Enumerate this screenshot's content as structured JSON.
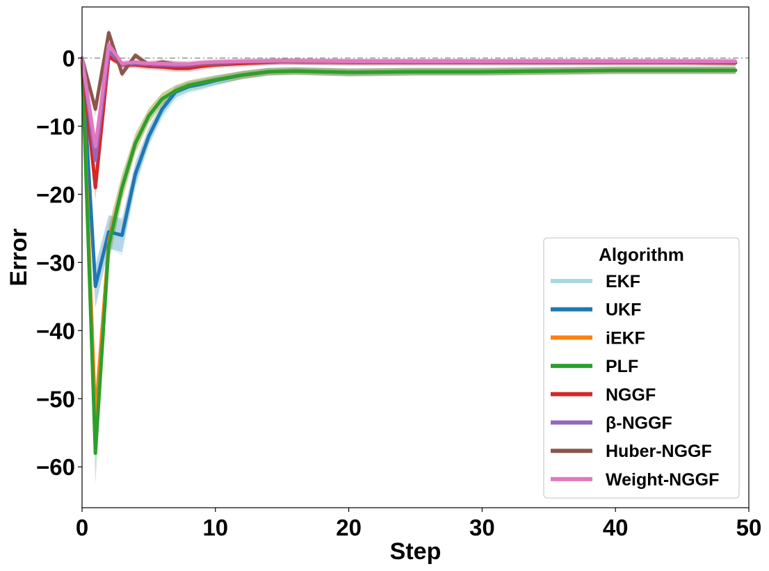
{
  "chart_data": {
    "type": "line",
    "title": "",
    "xlabel": "Step",
    "ylabel": "Error",
    "xlim": [
      0,
      50
    ],
    "ylim": [
      -66,
      7.5
    ],
    "xticks": [
      "0",
      "10",
      "20",
      "30",
      "40",
      "50"
    ],
    "yticks": [
      "0",
      "−10",
      "−20",
      "−30",
      "−40",
      "−50",
      "−60"
    ],
    "reference_line": 0,
    "grid": false,
    "legend": {
      "title": "Algorithm",
      "position": "lower-right"
    },
    "series": [
      {
        "name": "EKF",
        "color": "#a6d8e0",
        "x": [
          0,
          1,
          2,
          3,
          4,
          5,
          6,
          7,
          8,
          9,
          10,
          12,
          14,
          16,
          18,
          20,
          25,
          30,
          35,
          40,
          45,
          49
        ],
        "y": [
          0,
          -33.5,
          -25.5,
          -26.5,
          -17.5,
          -11.5,
          -8,
          -5.5,
          -4.5,
          -4,
          -3.5,
          -2.5,
          -2.0,
          -1.9,
          -2.0,
          -2.1,
          -2.0,
          -2.0,
          -1.9,
          -1.8,
          -1.8,
          -1.8
        ]
      },
      {
        "name": "UKF",
        "color": "#1f77b4",
        "x": [
          0,
          1,
          2,
          3,
          4,
          5,
          6,
          7,
          8,
          9,
          10,
          12,
          14,
          16,
          18,
          20,
          25,
          30,
          35,
          40,
          45,
          49
        ],
        "y": [
          0,
          -33.5,
          -25.5,
          -26,
          -17,
          -11.5,
          -7.5,
          -5,
          -4.2,
          -3.8,
          -3.3,
          -2.5,
          -2.0,
          -1.9,
          -2.0,
          -2.1,
          -2.0,
          -2.0,
          -1.9,
          -1.8,
          -1.8,
          -1.8
        ]
      },
      {
        "name": "iEKF",
        "color": "#ff7f0e",
        "x": [
          0,
          1,
          2,
          3,
          4,
          5,
          6,
          7,
          8,
          9,
          10,
          12,
          14,
          16,
          18,
          20,
          25,
          30,
          35,
          40,
          45,
          49
        ],
        "y": [
          0,
          -53,
          -27,
          -19,
          -12.5,
          -8.5,
          -6,
          -4.8,
          -4,
          -3.6,
          -3.2,
          -2.5,
          -2.0,
          -1.9,
          -2.0,
          -2.1,
          -2.0,
          -2.0,
          -1.9,
          -1.8,
          -1.8,
          -1.8
        ]
      },
      {
        "name": "PLF",
        "color": "#2ca02c",
        "x": [
          0,
          1,
          2,
          3,
          4,
          5,
          6,
          7,
          8,
          9,
          10,
          12,
          14,
          16,
          18,
          20,
          25,
          30,
          35,
          40,
          45,
          49
        ],
        "y": [
          0,
          -58,
          -27.5,
          -19,
          -12.5,
          -8.5,
          -6,
          -4.8,
          -4,
          -3.6,
          -3.2,
          -2.5,
          -2.0,
          -1.9,
          -2.0,
          -2.1,
          -2.0,
          -2.0,
          -1.9,
          -1.8,
          -1.8,
          -1.8
        ]
      },
      {
        "name": "NGGF",
        "color": "#d62728",
        "x": [
          0,
          1,
          2,
          3,
          4,
          5,
          6,
          7,
          8,
          9,
          10,
          12,
          15,
          20,
          25,
          30,
          35,
          40,
          45,
          49
        ],
        "y": [
          0,
          -19,
          0.2,
          -1,
          -1,
          -1.2,
          -1.3,
          -1.5,
          -1.5,
          -1.2,
          -1.0,
          -0.8,
          -0.5,
          -0.6,
          -0.6,
          -0.6,
          -0.6,
          -0.6,
          -0.6,
          -0.7
        ]
      },
      {
        "name": "β-NGGF",
        "color": "#9467bd",
        "x": [
          0,
          1,
          2,
          3,
          4,
          5,
          6,
          7,
          8,
          9,
          10,
          12,
          15,
          20,
          25,
          30,
          35,
          40,
          45,
          49
        ],
        "y": [
          0,
          -15,
          1,
          -1,
          -0.8,
          -1,
          -1,
          -1.1,
          -1.1,
          -0.9,
          -0.8,
          -0.6,
          -0.5,
          -0.6,
          -0.6,
          -0.6,
          -0.6,
          -0.6,
          -0.6,
          -0.6
        ]
      },
      {
        "name": "Huber-NGGF",
        "color": "#8c564b",
        "x": [
          0,
          1,
          2,
          3,
          4,
          5,
          6,
          7,
          8,
          9,
          10,
          12,
          15,
          20,
          25,
          30,
          35,
          40,
          45,
          49
        ],
        "y": [
          0,
          -7.5,
          3.7,
          -2.3,
          0.4,
          -1,
          -0.6,
          -0.9,
          -1,
          -0.8,
          -0.7,
          -0.6,
          -0.5,
          -0.6,
          -0.6,
          -0.6,
          -0.6,
          -0.6,
          -0.6,
          -0.7
        ]
      },
      {
        "name": "Weight-NGGF",
        "color": "#e377c2",
        "x": [
          0,
          1,
          2,
          3,
          4,
          5,
          6,
          7,
          8,
          9,
          10,
          12,
          15,
          20,
          25,
          30,
          35,
          40,
          45,
          49
        ],
        "y": [
          0,
          -13,
          2,
          -0.8,
          -0.6,
          -0.8,
          -0.8,
          -0.9,
          -0.9,
          -0.7,
          -0.6,
          -0.5,
          -0.4,
          -0.5,
          -0.5,
          -0.5,
          -0.5,
          -0.5,
          -0.5,
          -0.5
        ]
      }
    ]
  }
}
